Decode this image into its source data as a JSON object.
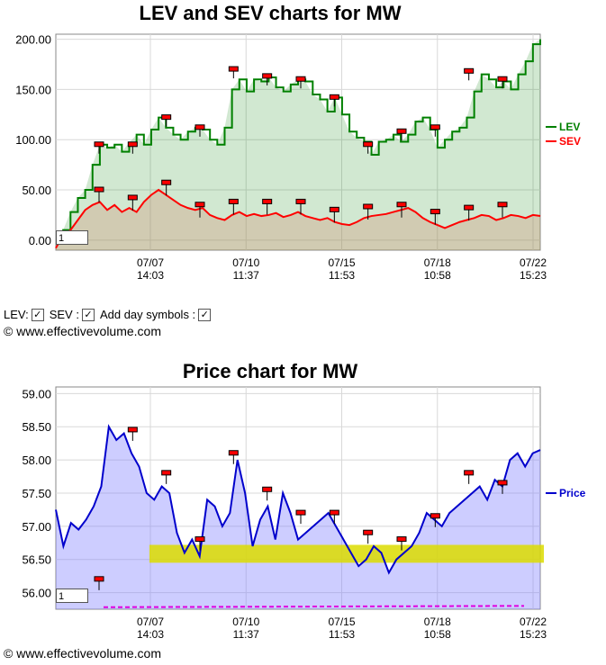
{
  "chart_data": [
    {
      "type": "area",
      "title": "LEV and SEV charts for MW",
      "ylim": [
        -10,
        205
      ],
      "y_ticks": [
        "200.00",
        "150.00",
        "100.00",
        "50.00",
        "0.00"
      ],
      "x_ticks": [
        {
          "date": "07/07",
          "time": "14:03"
        },
        {
          "date": "07/10",
          "time": "11:37"
        },
        {
          "date": "07/15",
          "time": "11:53"
        },
        {
          "date": "07/18",
          "time": "10:58"
        },
        {
          "date": "07/22",
          "time": "15:23"
        }
      ],
      "legend": "right",
      "grid": true,
      "series": [
        {
          "name": "LEV",
          "color": "#008000",
          "values": [
            0,
            10,
            28,
            42,
            50,
            75,
            95,
            92,
            95,
            88,
            97,
            105,
            95,
            110,
            122,
            112,
            105,
            100,
            108,
            112,
            110,
            100,
            95,
            112,
            150,
            160,
            148,
            160,
            158,
            162,
            152,
            148,
            155,
            160,
            158,
            145,
            140,
            128,
            142,
            125,
            108,
            102,
            98,
            85,
            98,
            100,
            105,
            98,
            105,
            118,
            122,
            110,
            92,
            100,
            108,
            112,
            122,
            148,
            165,
            160,
            152,
            158,
            150,
            165,
            178,
            195,
            200
          ]
        },
        {
          "name": "SEV",
          "color": "#ff0000",
          "values": [
            -8,
            5,
            10,
            20,
            30,
            35,
            38,
            30,
            35,
            28,
            32,
            28,
            38,
            45,
            50,
            45,
            40,
            35,
            32,
            30,
            32,
            25,
            22,
            20,
            25,
            28,
            24,
            26,
            24,
            25,
            27,
            23,
            25,
            28,
            24,
            22,
            20,
            22,
            18,
            16,
            15,
            18,
            22,
            24,
            25,
            26,
            28,
            30,
            32,
            28,
            22,
            18,
            15,
            12,
            15,
            18,
            20,
            22,
            25,
            24,
            20,
            22,
            25,
            24,
            22,
            25,
            24
          ]
        }
      ],
      "day_markers_lev": [
        95,
        95,
        122,
        112,
        170,
        163,
        160,
        142,
        95,
        108,
        112,
        168,
        160
      ],
      "day_markers_sev": [
        50,
        42,
        57,
        35,
        38,
        38,
        38,
        30,
        33,
        35,
        28,
        32,
        35
      ]
    },
    {
      "type": "area",
      "title": "Price chart for MW",
      "ylim": [
        55.75,
        59.1
      ],
      "y_ticks": [
        "59.00",
        "58.50",
        "58.00",
        "57.50",
        "57.00",
        "56.50",
        "56.00"
      ],
      "x_ticks": [
        {
          "date": "07/07",
          "time": "14:03"
        },
        {
          "date": "07/10",
          "time": "11:37"
        },
        {
          "date": "07/15",
          "time": "11:53"
        },
        {
          "date": "07/18",
          "time": "10:58"
        },
        {
          "date": "07/22",
          "time": "15:23"
        }
      ],
      "legend": "right",
      "grid": true,
      "series": [
        {
          "name": "Price",
          "color": "#0000cc",
          "values": [
            57.25,
            56.7,
            57.05,
            56.95,
            57.1,
            57.3,
            57.6,
            58.5,
            58.3,
            58.4,
            58.1,
            57.9,
            57.5,
            57.4,
            57.6,
            57.5,
            56.9,
            56.6,
            56.8,
            56.55,
            57.4,
            57.3,
            57.0,
            57.2,
            58.0,
            57.5,
            56.7,
            57.1,
            57.3,
            56.8,
            57.5,
            57.2,
            56.8,
            56.9,
            57.0,
            57.1,
            57.2,
            57.0,
            56.8,
            56.6,
            56.4,
            56.5,
            56.7,
            56.6,
            56.3,
            56.5,
            56.6,
            56.7,
            56.9,
            57.2,
            57.1,
            57.0,
            57.2,
            57.3,
            57.4,
            57.5,
            57.6,
            57.4,
            57.7,
            57.6,
            58.0,
            58.1,
            57.9,
            58.1,
            58.15
          ]
        }
      ],
      "day_markers": [
        56.2,
        58.45,
        57.8,
        56.8,
        58.1,
        57.55,
        57.2,
        57.2,
        56.9,
        56.8,
        57.15,
        57.8,
        57.65
      ],
      "highlight_band": [
        56.45,
        56.72
      ]
    }
  ],
  "controls": {
    "lev_label": "LEV:",
    "sev_label": "SEV :",
    "day_symbols_label": "Add day symbols :",
    "check": "✓"
  },
  "copyright": "© www.effectivevolume.com",
  "zoom_value": "1"
}
